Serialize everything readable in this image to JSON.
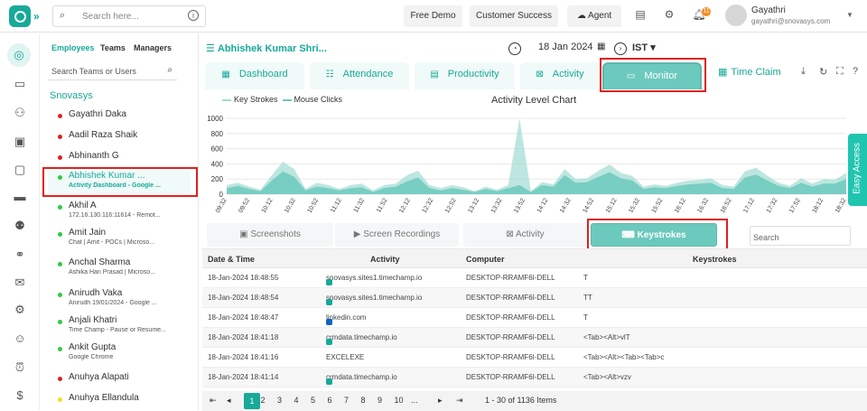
{
  "topbar": {
    "search_placeholder": "Search here...",
    "free_demo": "Free Demo",
    "customer_success": "Customer Success",
    "agent": "Agent",
    "notif_count": "11",
    "user_name": "Gayathri",
    "user_email": "gayathri@snovasys.com"
  },
  "panel": {
    "tabs": [
      "Employees",
      "Teams",
      "Managers"
    ],
    "search_placeholder": "Search Teams or Users",
    "org": "Snovasys",
    "members": [
      {
        "name": "Gayathri Daka",
        "sub": "",
        "status": "#e02020"
      },
      {
        "name": "Aadil Raza Shaik",
        "sub": "",
        "status": "#e02020"
      },
      {
        "name": "Abhinanth G",
        "sub": "",
        "status": "#e02020"
      },
      {
        "name": "Abhishek Kumar ...",
        "sub": "Activity Dashboard - Google ...",
        "status": "#2ecc40"
      },
      {
        "name": "Akhil A",
        "sub": "172.16.130.116:11614 - Remot...",
        "status": "#2ecc40"
      },
      {
        "name": "Amit Jain",
        "sub": "Chat | Amit - POCs | Microso...",
        "status": "#2ecc40"
      },
      {
        "name": "Anchal Sharma",
        "sub": "Ashika Hari Prasad | Microso...",
        "status": "#2ecc40"
      },
      {
        "name": "Anirudh Vaka",
        "sub": "Anirudh 19/01/2024 - Google ...",
        "status": "#2ecc40"
      },
      {
        "name": "Anjali Khatri",
        "sub": "Time Champ - Pause or Resume...",
        "status": "#2ecc40"
      },
      {
        "name": "Ankit Gupta",
        "sub": "Google Chrome",
        "status": "#2ecc40"
      },
      {
        "name": "Anuhya Alapati",
        "sub": "",
        "status": "#e02020"
      },
      {
        "name": "Anuhya Ellandula",
        "sub": "",
        "status": "#f0e020"
      }
    ]
  },
  "main": {
    "employee": "Abhishek Kumar Shri...",
    "date": "18 Jan 2024",
    "tz": "IST",
    "tabs": [
      "Dashboard",
      "Attendance",
      "Productivity",
      "Activity",
      "Monitor",
      "Time Claim"
    ],
    "active_tab": "Monitor"
  },
  "chart_data": {
    "type": "area",
    "title": "Activity Level Chart",
    "legend": [
      "Key Strokes",
      "Mouse Clicks"
    ],
    "series": [
      {
        "name": "Key Strokes",
        "values": [
          120,
          150,
          100,
          60,
          250,
          430,
          330,
          70,
          150,
          120,
          70,
          120,
          140,
          50,
          120,
          140,
          250,
          310,
          120,
          80,
          120,
          90,
          40,
          100,
          60,
          120,
          1000,
          40,
          160,
          130,
          330,
          200,
          210,
          310,
          390,
          280,
          240,
          100,
          130,
          110,
          150,
          180,
          190,
          210,
          120,
          100,
          300,
          350,
          240,
          150,
          110,
          210,
          140,
          200,
          190,
          280
        ]
      },
      {
        "name": "Mouse Clicks",
        "values": [
          80,
          110,
          70,
          40,
          180,
          300,
          230,
          50,
          100,
          80,
          50,
          80,
          90,
          30,
          80,
          100,
          170,
          220,
          80,
          50,
          80,
          60,
          30,
          70,
          40,
          80,
          120,
          30,
          120,
          100,
          250,
          150,
          160,
          230,
          290,
          210,
          180,
          70,
          90,
          80,
          110,
          130,
          140,
          150,
          80,
          70,
          220,
          260,
          180,
          110,
          80,
          150,
          100,
          140,
          140,
          200
        ]
      }
    ],
    "ylim": [
      0,
      1000
    ],
    "yticks": [
      "1000",
      "800",
      "600",
      "400",
      "200",
      "0"
    ],
    "xlabels": [
      "09:32",
      "09:52",
      "10:12",
      "10:32",
      "10:52",
      "11:12",
      "11:32",
      "11:52",
      "12:12",
      "12:32",
      "12:52",
      "13:12",
      "13:32",
      "13:52",
      "14:12",
      "14:32",
      "14:52",
      "15:12",
      "15:32",
      "15:52",
      "16:12",
      "16:32",
      "16:52",
      "17:12",
      "17:32",
      "17:52",
      "18:12",
      "18:32"
    ],
    "x_extent": [
      0,
      55
    ],
    "grid": true,
    "legend_placement": "top-left"
  },
  "subtabs": {
    "labels": [
      "Screenshots",
      "Screen Recordings",
      "Activity",
      "Keystrokes"
    ],
    "active": "Keystrokes",
    "search_placeholder": "Search"
  },
  "table": {
    "headers": [
      "Date & Time",
      "Activity",
      "Computer",
      "Keystrokes"
    ],
    "rows": [
      [
        "18-Jan-2024 18:48:55",
        "snovasys.sites1.timechamp.io",
        "DESKTOP-RRAMF6I-DELL",
        "T"
      ],
      [
        "18-Jan-2024 18:48:54",
        "snovasys.sites1.timechamp.io",
        "DESKTOP-RRAMF6I-DELL",
        "TT"
      ],
      [
        "18-Jan-2024 18:48:47",
        "linkedin.com",
        "DESKTOP-RRAMF6I-DELL",
        "T"
      ],
      [
        "18-Jan-2024 18:41:18",
        "crmdata.timechamp.io",
        "DESKTOP-RRAMF6I-DELL",
        "<Tab><Alt>vlT"
      ],
      [
        "18-Jan-2024 18:41:16",
        "EXCELEXE",
        "DESKTOP-RRAMF6I-DELL",
        "<Tab><Alt><Tab><Tab>c"
      ],
      [
        "18-Jan-2024 18:41:14",
        "crmdata.timechamp.io",
        "DESKTOP-RRAMF6I-DELL",
        "<Tab><Alt>vzv"
      ]
    ],
    "row_icons": [
      "web",
      "web",
      "linkedin",
      "web",
      "",
      "web"
    ]
  },
  "pager": {
    "pages": [
      "1",
      "2",
      "3",
      "4",
      "5",
      "6",
      "7",
      "8",
      "9",
      "10",
      "..."
    ],
    "summary": "1 - 30 of 1136 Items"
  },
  "easy_access": "Easy Access"
}
